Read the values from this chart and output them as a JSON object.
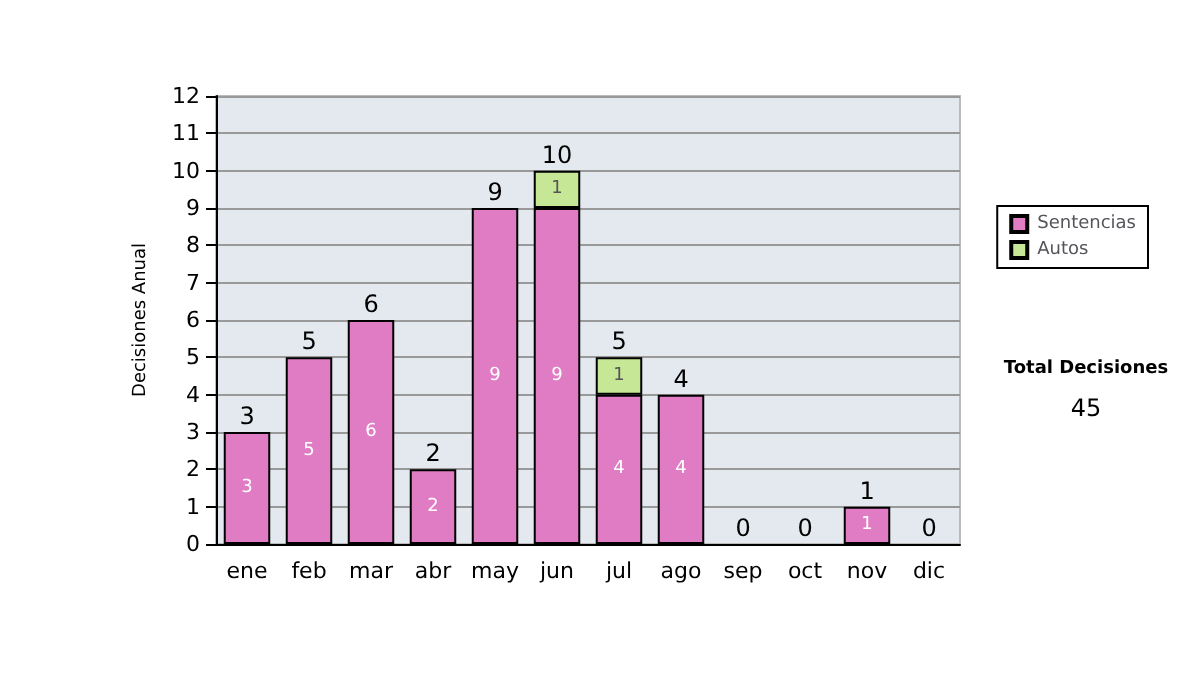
{
  "chart_data": {
    "type": "bar",
    "stacked": true,
    "ylabel": "Decisiones Anual",
    "categories": [
      "ene",
      "feb",
      "mar",
      "abr",
      "may",
      "jun",
      "jul",
      "ago",
      "sep",
      "oct",
      "nov",
      "dic"
    ],
    "series": [
      {
        "name": "Sentencias",
        "color": "#e07cc4",
        "values": [
          3,
          5,
          6,
          2,
          9,
          9,
          4,
          4,
          0,
          0,
          1,
          0
        ],
        "value_labels": [
          "3",
          "5",
          "6",
          "2",
          "9",
          "9",
          "4",
          "4",
          null,
          null,
          "1",
          null
        ]
      },
      {
        "name": "Autos",
        "color": "#c6e896",
        "values": [
          0,
          0,
          0,
          0,
          0,
          1,
          1,
          0,
          0,
          0,
          0,
          0
        ],
        "value_labels": [
          null,
          null,
          null,
          null,
          null,
          "1",
          "1",
          null,
          null,
          null,
          null,
          null
        ]
      }
    ],
    "totals": [
      "3",
      "5",
      "6",
      "2",
      "9",
      "10",
      "5",
      "4",
      "0",
      "0",
      "1",
      "0"
    ],
    "ylim": [
      0,
      12
    ],
    "yticks": [
      0,
      1,
      2,
      3,
      4,
      5,
      6,
      7,
      8,
      9,
      10,
      11,
      12
    ],
    "grid": "y",
    "legend": "right",
    "annotations": [
      "Total Decisiones",
      "45"
    ]
  }
}
